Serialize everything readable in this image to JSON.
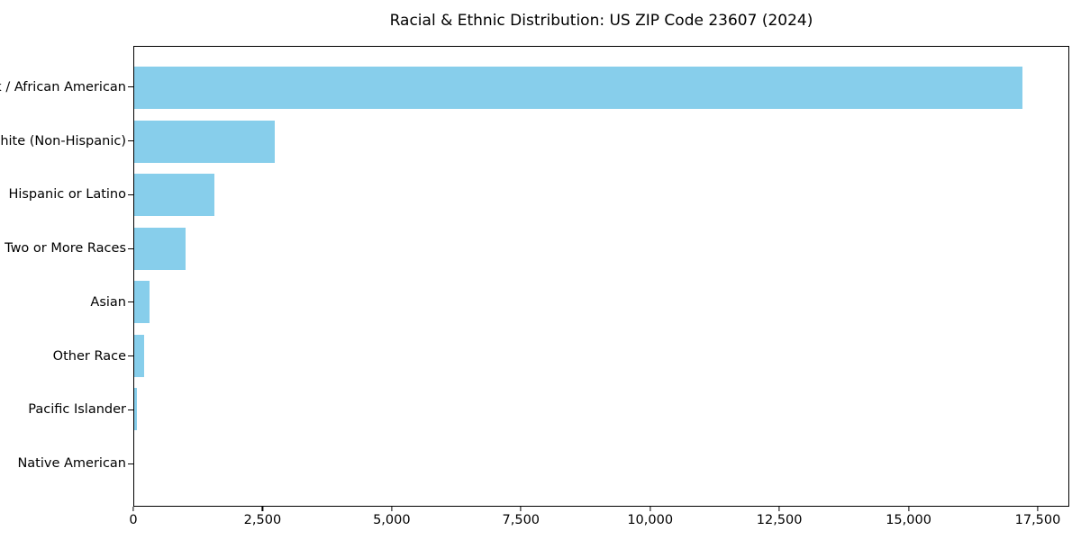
{
  "figure": {
    "background": "#ffffff",
    "text_color": "#000000",
    "spine_color": "#000000"
  },
  "chart_data": {
    "type": "bar",
    "orientation": "horizontal",
    "title": "Racial & Ethnic Distribution: US ZIP Code 23607 (2024)",
    "xlabel": "",
    "ylabel": "",
    "categories": [
      "Black / African American",
      "White (Non-Hispanic)",
      "Hispanic or Latino",
      "Two or More Races",
      "Asian",
      "Other Race",
      "Pacific Islander",
      "Native American"
    ],
    "values": [
      17220,
      2730,
      1555,
      1000,
      300,
      185,
      50,
      0
    ],
    "bar_color": "#87CEEB",
    "xlim": [
      0,
      18110
    ],
    "xticks": {
      "values": [
        0,
        2500,
        5000,
        7500,
        10000,
        12500,
        15000,
        17500
      ],
      "labels": [
        "0",
        "2,500",
        "5,000",
        "7,500",
        "10,000",
        "12,500",
        "15,000",
        "17,500"
      ]
    },
    "grid": false,
    "legend": null
  }
}
